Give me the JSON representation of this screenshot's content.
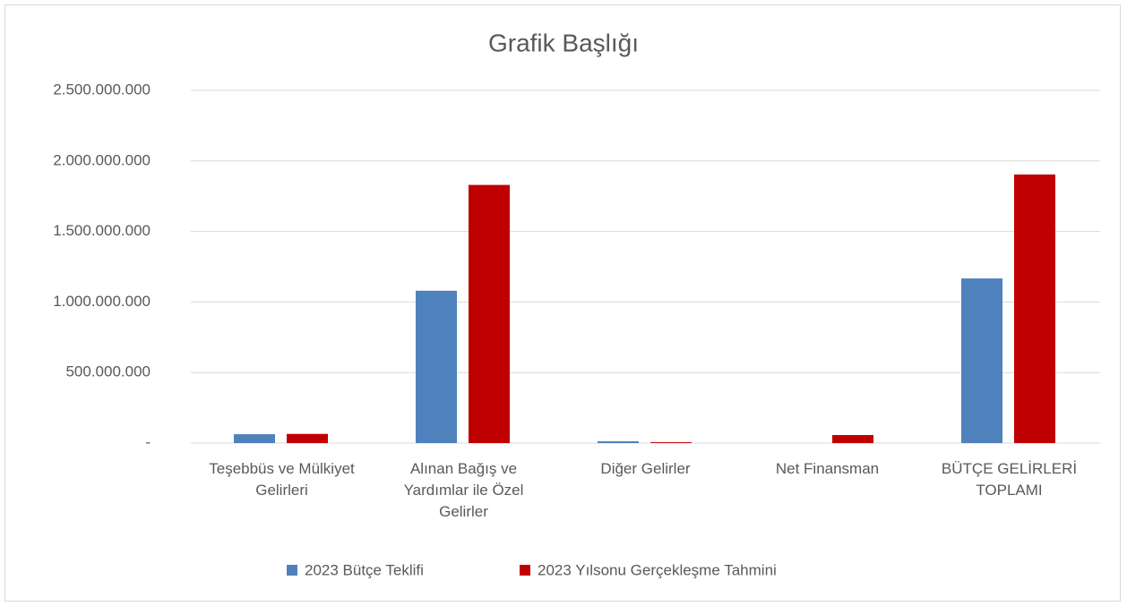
{
  "chart_data": {
    "type": "bar",
    "title": "Grafik Başlığı",
    "categories": [
      "Teşebbüs ve Mülkiyet Gelirleri",
      "Alınan Bağış ve Yardımlar ile Özel Gelirler",
      "Diğer Gelirler",
      "Net Finansman",
      "BÜTÇE GELİRLERİ TOPLAMI"
    ],
    "series": [
      {
        "name": "2023 Bütçe Teklifi",
        "color": "#4f81bd",
        "values": [
          63000000,
          1080000000,
          13000000,
          0,
          1167000000
        ]
      },
      {
        "name": "2023 Yılsonu Gerçekleşme Tahmini",
        "color": "#c00000",
        "values": [
          65000000,
          1830000000,
          6000000,
          57000000,
          1904000000
        ]
      }
    ],
    "ylim": [
      0,
      2500000000
    ],
    "yticks": [
      {
        "value": 0,
        "label": "-"
      },
      {
        "value": 500000000,
        "label": "500.000.000"
      },
      {
        "value": 1000000000,
        "label": "1.000.000.000"
      },
      {
        "value": 1500000000,
        "label": "1.500.000.000"
      },
      {
        "value": 2000000000,
        "label": "2.000.000.000"
      },
      {
        "value": 2500000000,
        "label": "2.500.000.000"
      }
    ],
    "grid": true,
    "legend": "bottom"
  }
}
